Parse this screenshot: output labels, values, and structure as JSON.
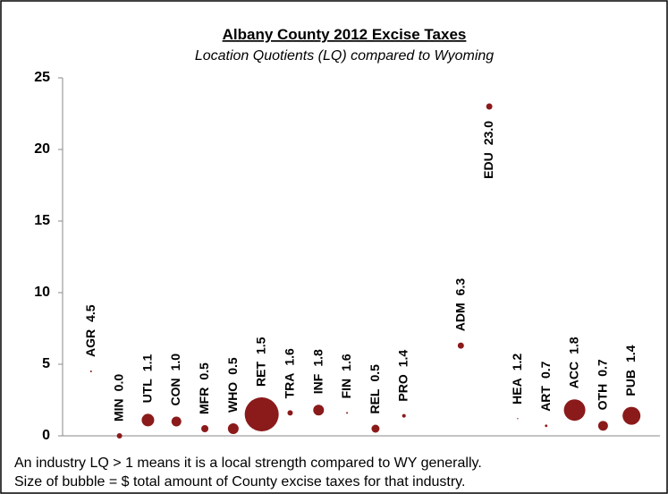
{
  "chart_data": {
    "type": "bubble",
    "title": "Albany County 2012 Excise Taxes",
    "subtitle": "Location Quotients (LQ) compared to Wyoming",
    "categories": [
      "AGR",
      "MIN",
      "UTL",
      "CON",
      "MFR",
      "WHO",
      "RET",
      "TRA",
      "INF",
      "FIN",
      "REL",
      "PRO",
      "ADM",
      "EDU",
      "HEA",
      "ART",
      "ACC",
      "OTH",
      "PUB"
    ],
    "x": [
      1,
      2,
      3,
      4,
      5,
      6,
      7,
      8,
      9,
      10,
      11,
      12,
      14,
      15,
      16,
      17,
      18,
      19,
      20
    ],
    "values": [
      4.5,
      0.0,
      1.1,
      1.0,
      0.5,
      0.5,
      1.5,
      1.6,
      1.8,
      1.6,
      0.5,
      1.4,
      6.3,
      23.0,
      1.2,
      0.7,
      1.8,
      0.7,
      1.4
    ],
    "value_labels": [
      "4.5",
      "0.0",
      "1.1",
      "1.0",
      "0.5",
      "0.5",
      "1.5",
      "1.6",
      "1.8",
      "1.6",
      "0.5",
      "1.4",
      "6.3",
      "23.0",
      "1.2",
      "0.7",
      "1.8",
      "0.7",
      "1.4"
    ],
    "sizes": [
      1,
      9,
      49,
      30,
      16,
      36,
      361,
      9,
      36,
      1,
      20,
      4,
      12,
      12,
      0.5,
      2,
      144,
      30,
      100
    ],
    "color": "#8b1a1a",
    "xlim": [
      0,
      21
    ],
    "ylim": [
      0,
      25
    ],
    "yticks": [
      0,
      5,
      10,
      15,
      20,
      25
    ],
    "notes": [
      "An industry LQ > 1 means it is a local strength compared to WY generally.",
      "Size of bubble = $ total amount of County excise taxes for that industry."
    ]
  }
}
